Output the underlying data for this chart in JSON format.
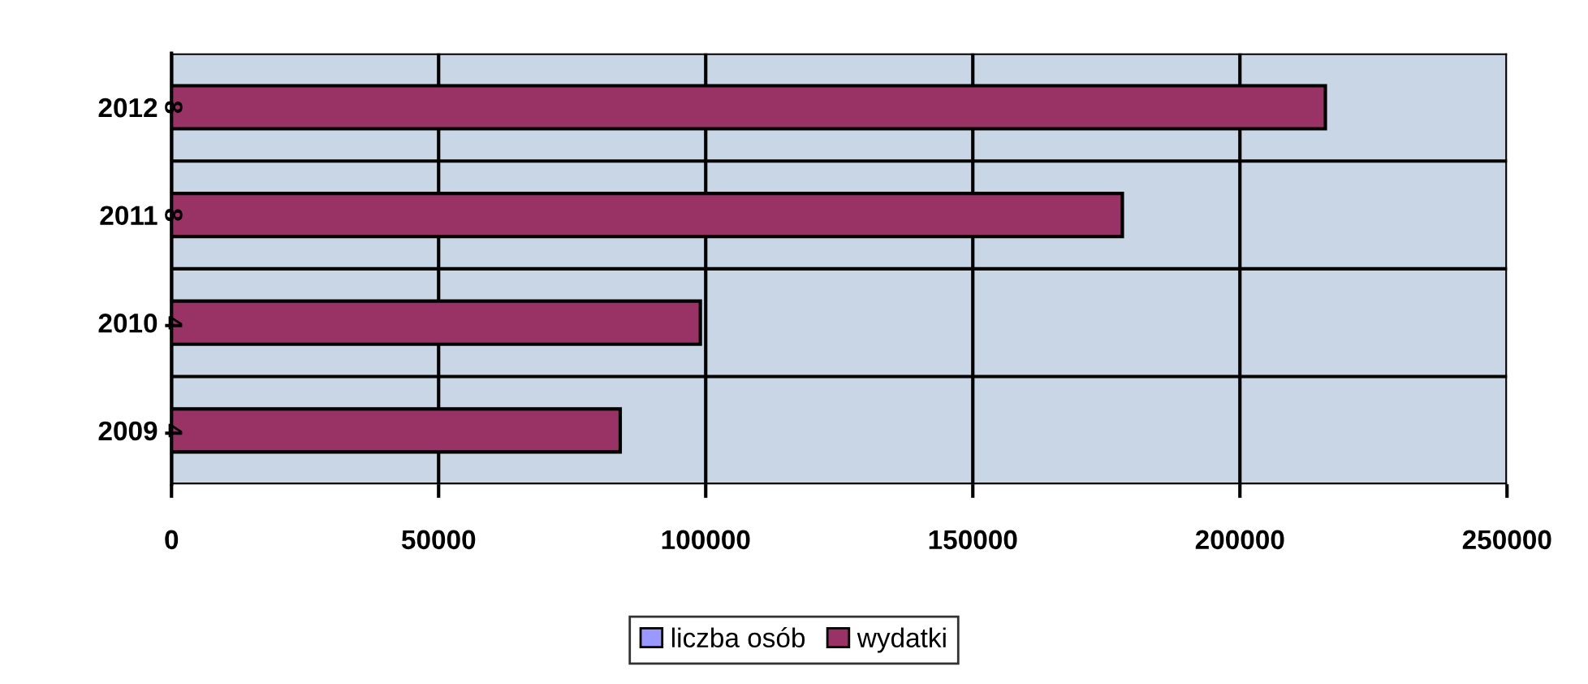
{
  "chart_data": {
    "type": "bar",
    "orientation": "horizontal",
    "categories": [
      "2012",
      "2011",
      "2010",
      "2009"
    ],
    "series": [
      {
        "name": "liczba osób",
        "color": "#9999ff",
        "values": [
          8,
          8,
          4,
          4
        ],
        "value_labels": [
          "8",
          "8",
          "4",
          "4"
        ]
      },
      {
        "name": "wydatki",
        "color": "#993366",
        "values": [
          216000,
          178000,
          99000,
          84000
        ]
      }
    ],
    "xlim": [
      0,
      250000
    ],
    "xticks": [
      0,
      50000,
      100000,
      150000,
      200000,
      250000
    ],
    "grid": true,
    "legend": "bottom"
  }
}
